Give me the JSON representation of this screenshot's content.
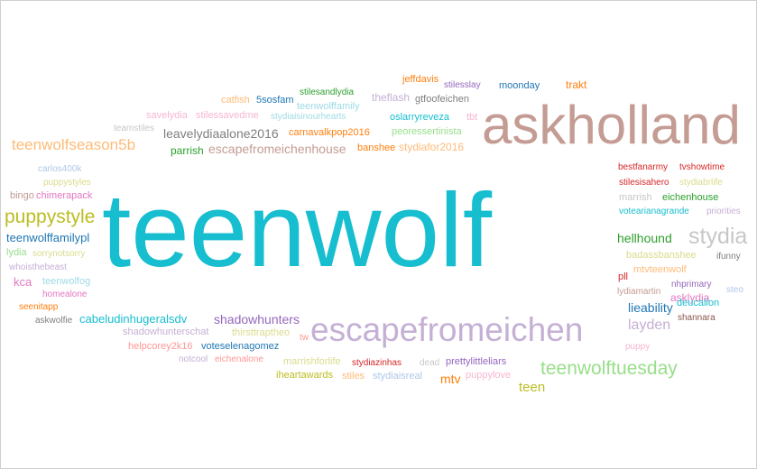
{
  "words": [
    {
      "text": "teenwolf",
      "color": "#17becf"
    },
    {
      "text": "askholland",
      "color": "#c49c94"
    },
    {
      "text": "escapefromeichen",
      "color": "#c5b0d5"
    },
    {
      "text": "teenwolfseason5b",
      "color": "#ffbb78"
    },
    {
      "text": "teenwolftuesday",
      "color": "#98df8a"
    },
    {
      "text": "puppystyle",
      "color": "#bcbd22"
    },
    {
      "text": "stydia",
      "color": "#c7c7c7"
    },
    {
      "text": "layden",
      "color": "#c5b0d5"
    },
    {
      "text": "teen",
      "color": "#bcbd22"
    },
    {
      "text": "leavelydiaalone2016",
      "color": "#7f7f7f"
    },
    {
      "text": "escapefromeichenhouse",
      "color": "#c49c94"
    },
    {
      "text": "hellhound",
      "color": "#2ca02c"
    },
    {
      "text": "lieability",
      "color": "#1f77b4"
    },
    {
      "text": "shadowhunters",
      "color": "#9467bd"
    },
    {
      "text": "cabeludinhugeralsdv",
      "color": "#17becf"
    },
    {
      "text": "teenwolffamilypl",
      "color": "#1f77b4"
    },
    {
      "text": "mtv",
      "color": "#ff7f0e"
    },
    {
      "text": "asklydia",
      "color": "#e377c2"
    },
    {
      "text": "theflash",
      "color": "#c5b0d5"
    },
    {
      "text": "stydiafor2016",
      "color": "#ffbb78"
    },
    {
      "text": "savelydia",
      "color": "#f7b6d2"
    },
    {
      "text": "stilessavedme",
      "color": "#f7b6d2"
    },
    {
      "text": "stydiaisinourhearts",
      "color": "#9edae5"
    },
    {
      "text": "oslarryreveza",
      "color": "#17becf"
    },
    {
      "text": "peoressertinista",
      "color": "#98df8a"
    },
    {
      "text": "tbt",
      "color": "#f7b6d2"
    },
    {
      "text": "carnavalkpop2016",
      "color": "#ff7f0e"
    },
    {
      "text": "banshee",
      "color": "#ff7f0e"
    },
    {
      "text": "parrish",
      "color": "#2ca02c"
    },
    {
      "text": "teamstiles",
      "color": "#c7c7c7"
    },
    {
      "text": "catfish",
      "color": "#ffbb78"
    },
    {
      "text": "5sosfam",
      "color": "#1f77b4"
    },
    {
      "text": "teenwolffamily",
      "color": "#9edae5"
    },
    {
      "text": "stilesandlydia",
      "color": "#2ca02c"
    },
    {
      "text": "jeffdavis",
      "color": "#ff7f0e"
    },
    {
      "text": "stilesslay",
      "color": "#9467bd"
    },
    {
      "text": "moonday",
      "color": "#1f77b4"
    },
    {
      "text": "trakt",
      "color": "#ff7f0e"
    },
    {
      "text": "gtfoofeichen",
      "color": "#7f7f7f"
    },
    {
      "text": "carlos400k",
      "color": "#aec7e8"
    },
    {
      "text": "puppystyles",
      "color": "#dbdb8d"
    },
    {
      "text": "bingo",
      "color": "#c49c94"
    },
    {
      "text": "chimerapack",
      "color": "#e377c2"
    },
    {
      "text": "lydia",
      "color": "#98df8a"
    },
    {
      "text": "sorrynotsorry",
      "color": "#dbdb8d"
    },
    {
      "text": "whoisthebeast",
      "color": "#c5b0d5"
    },
    {
      "text": "kca",
      "color": "#e377c2"
    },
    {
      "text": "teenwolfog",
      "color": "#9edae5"
    },
    {
      "text": "homealone",
      "color": "#e377c2"
    },
    {
      "text": "seenitapp",
      "color": "#ff7f0e"
    },
    {
      "text": "askwolfie",
      "color": "#7f7f7f"
    },
    {
      "text": "shadowhunterschat",
      "color": "#c5b0d5"
    },
    {
      "text": "thirsttraptheo",
      "color": "#dbdb8d"
    },
    {
      "text": "helpcorey2k16",
      "color": "#ff9896"
    },
    {
      "text": "voteselenagomez",
      "color": "#1f77b4"
    },
    {
      "text": "notcool",
      "color": "#c5b0d5"
    },
    {
      "text": "eichenalone",
      "color": "#ff9896"
    },
    {
      "text": "tw",
      "color": "#ff9896"
    },
    {
      "text": "marrishforlife",
      "color": "#dbdb8d"
    },
    {
      "text": "iheartawards",
      "color": "#bcbd22"
    },
    {
      "text": "stiles",
      "color": "#ffbb78"
    },
    {
      "text": "stydiazinhas",
      "color": "#d62728"
    },
    {
      "text": "dead",
      "color": "#c7c7c7"
    },
    {
      "text": "stydiaisreal",
      "color": "#aec7e8"
    },
    {
      "text": "prettylittleliars",
      "color": "#9467bd"
    },
    {
      "text": "puppylove",
      "color": "#f7b6d2"
    },
    {
      "text": "bestfanarmy",
      "color": "#d62728"
    },
    {
      "text": "tvshowtime",
      "color": "#d62728"
    },
    {
      "text": "stilesisahero",
      "color": "#d62728"
    },
    {
      "text": "stydiabrlife",
      "color": "#dbdb8d"
    },
    {
      "text": "marrish",
      "color": "#c7c7c7"
    },
    {
      "text": "eichenhouse",
      "color": "#2ca02c"
    },
    {
      "text": "votearianagrande",
      "color": "#17becf"
    },
    {
      "text": "priorities",
      "color": "#c5b0d5"
    },
    {
      "text": "badassbanshee",
      "color": "#dbdb8d"
    },
    {
      "text": "ifunny",
      "color": "#7f7f7f"
    },
    {
      "text": "pll",
      "color": "#d62728"
    },
    {
      "text": "mtvteenwolf",
      "color": "#ffbb78"
    },
    {
      "text": "nhprimary",
      "color": "#9467bd"
    },
    {
      "text": "lydiamartin",
      "color": "#c49c94"
    },
    {
      "text": "steo",
      "color": "#aec7e8"
    },
    {
      "text": "deucalion",
      "color": "#17becf"
    },
    {
      "text": "shannara",
      "color": "#8c564b"
    },
    {
      "text": "puppy",
      "color": "#f7b6d2"
    }
  ]
}
